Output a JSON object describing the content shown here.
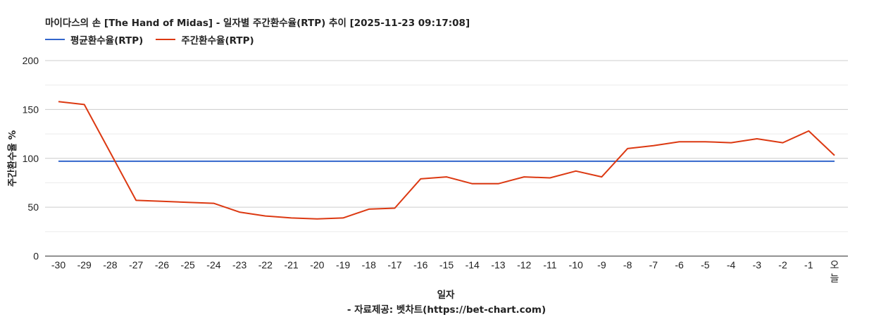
{
  "header": {
    "title": "마이다스의 손 [The Hand of Midas] - 일자별 주간환수율(RTP) 추이 [2025-11-23 09:17:08]"
  },
  "legend": [
    {
      "label": "평균환수율(RTP)",
      "color": "#3366cc"
    },
    {
      "label": "주간환수율(RTP)",
      "color": "#dc3912"
    }
  ],
  "axes": {
    "ylabel": "주간환수율 %",
    "xlabel": "일자",
    "yticks": [
      "0",
      "50",
      "100",
      "150",
      "200"
    ]
  },
  "footer": {
    "credit": "- 자료제공: 벳차트(https://bet-chart.com)"
  },
  "chart_data": {
    "type": "line",
    "title": "마이다스의 손 [The Hand of Midas] - 일자별 주간환수율(RTP) 추이 [2025-11-23 09:17:08]",
    "xlabel": "일자",
    "ylabel": "주간환수율 %",
    "ylim": [
      0,
      200
    ],
    "yticks": [
      0,
      50,
      100,
      150,
      200
    ],
    "grid": true,
    "legend_position": "top-left",
    "categories": [
      "-30",
      "-29",
      "-28",
      "-27",
      "-26",
      "-25",
      "-24",
      "-23",
      "-22",
      "-21",
      "-20",
      "-19",
      "-18",
      "-17",
      "-16",
      "-15",
      "-14",
      "-13",
      "-12",
      "-11",
      "-10",
      "-9",
      "-8",
      "-7",
      "-6",
      "-5",
      "-4",
      "-3",
      "-2",
      "-1",
      "오늘"
    ],
    "series": [
      {
        "name": "평균환수율(RTP)",
        "color": "#3366cc",
        "values": [
          97,
          97,
          97,
          97,
          97,
          97,
          97,
          97,
          97,
          97,
          97,
          97,
          97,
          97,
          97,
          97,
          97,
          97,
          97,
          97,
          97,
          97,
          97,
          97,
          97,
          97,
          97,
          97,
          97,
          97,
          97
        ]
      },
      {
        "name": "주간환수율(RTP)",
        "color": "#dc3912",
        "values": [
          158,
          155,
          106,
          57,
          56,
          55,
          54,
          45,
          41,
          39,
          38,
          39,
          48,
          49,
          79,
          81,
          74,
          74,
          81,
          80,
          87,
          81,
          110,
          113,
          117,
          117,
          116,
          120,
          116,
          128,
          103
        ]
      }
    ],
    "annotation": "- 자료제공: 벳차트(https://bet-chart.com)"
  }
}
